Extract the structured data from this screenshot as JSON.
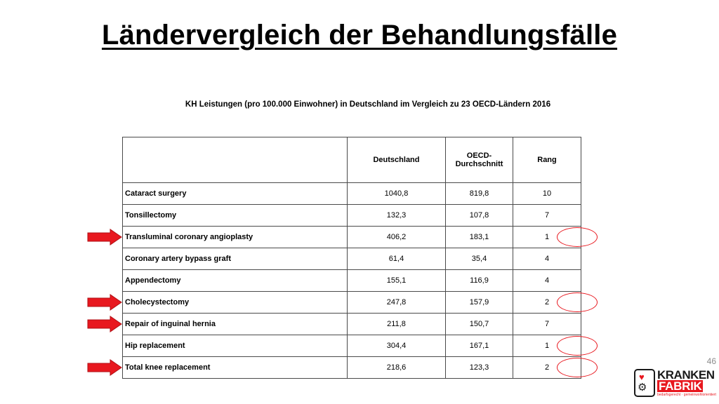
{
  "slide": {
    "title": "Ländervergleich der Behandlungsfälle",
    "subtitle": "KH Leistungen (pro 100.000 Einwohner)  in Deutschland im Vergleich zu 23 OECD-Ländern 2016",
    "page_number": "46"
  },
  "table": {
    "headers": [
      "",
      "Deutschland",
      "OECD-Durchschnitt",
      "Rang"
    ],
    "rows": [
      {
        "procedure": "Cataract surgery",
        "deutschland": "1040,8",
        "oecd": "819,8",
        "rang": "10",
        "arrow": false,
        "circled": false
      },
      {
        "procedure": "Tonsillectomy",
        "deutschland": "132,3",
        "oecd": "107,8",
        "rang": "7",
        "arrow": false,
        "circled": false
      },
      {
        "procedure": "Transluminal coronary angioplasty",
        "deutschland": "406,2",
        "oecd": "183,1",
        "rang": "1",
        "arrow": true,
        "circled": true
      },
      {
        "procedure": "Coronary artery bypass graft",
        "deutschland": "61,4",
        "oecd": "35,4",
        "rang": "4",
        "arrow": false,
        "circled": false
      },
      {
        "procedure": "Appendectomy",
        "deutschland": "155,1",
        "oecd": "116,9",
        "rang": "4",
        "arrow": false,
        "circled": false
      },
      {
        "procedure": "Cholecystectomy",
        "deutschland": "247,8",
        "oecd": "157,9",
        "rang": "2",
        "arrow": true,
        "circled": true
      },
      {
        "procedure": "Repair of inguinal hernia",
        "deutschland": "211,8",
        "oecd": "150,7",
        "rang": "7",
        "arrow": true,
        "circled": false
      },
      {
        "procedure": "Hip replacement",
        "deutschland": "304,4",
        "oecd": "167,1",
        "rang": "1",
        "arrow": false,
        "circled": true
      },
      {
        "procedure": "Total knee replacement",
        "deutschland": "218,6",
        "oecd": "123,3",
        "rang": "2",
        "arrow": true,
        "circled": true
      }
    ]
  },
  "logo": {
    "word1": "KRANKEN",
    "word2": "FABRIK",
    "tagline": "bedarfsgerecht · gemeinwohlorientiert",
    "colors": {
      "red": "#e8181f",
      "dark": "#1a1a1a"
    }
  },
  "colors": {
    "arrow": "#e8181f",
    "circle": "#e8181f",
    "table_border": "#4a4a4a",
    "page_number": "#8c8c8c"
  }
}
